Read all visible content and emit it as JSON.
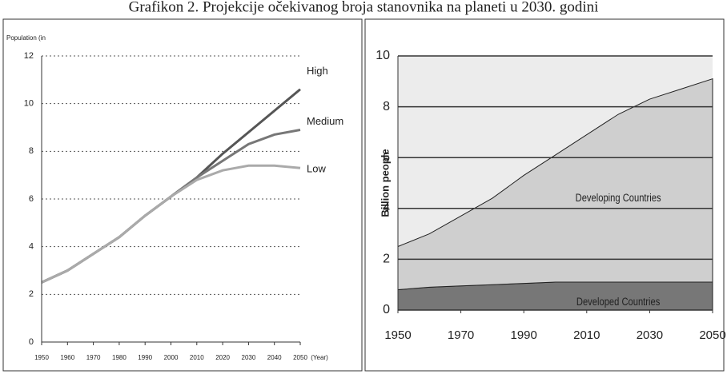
{
  "title": "Grafikon 2. Projekcije očekivanog broja stanovnika na planeti u 2030. godini",
  "chart_data": [
    {
      "type": "line",
      "ylabel": "Population (in",
      "xlabel": "(Year)",
      "x": [
        1950,
        1960,
        1970,
        1980,
        1990,
        2000,
        2010,
        2020,
        2030,
        2040,
        2050
      ],
      "xlim": [
        1950,
        2050
      ],
      "xticks": [
        1950,
        1960,
        1970,
        1980,
        1990,
        2000,
        2010,
        2020,
        2030,
        2040,
        2050
      ],
      "ylim": [
        0,
        12
      ],
      "yticks": [
        0,
        2,
        4,
        6,
        8,
        10,
        12
      ],
      "grid": true,
      "series": [
        {
          "name": "High",
          "color": "#555555",
          "values": [
            2.5,
            3.0,
            3.7,
            4.4,
            5.3,
            6.1,
            6.9,
            7.9,
            8.8,
            9.7,
            10.6
          ]
        },
        {
          "name": "Medium",
          "color": "#777777",
          "values": [
            2.5,
            3.0,
            3.7,
            4.4,
            5.3,
            6.1,
            6.9,
            7.6,
            8.3,
            8.7,
            8.9
          ]
        },
        {
          "name": "Low",
          "color": "#aaaaaa",
          "values": [
            2.5,
            3.0,
            3.7,
            4.4,
            5.3,
            6.1,
            6.8,
            7.2,
            7.4,
            7.4,
            7.3
          ]
        }
      ]
    },
    {
      "type": "stacked_area",
      "ylabel": "Billion people",
      "x": [
        1950,
        1960,
        1970,
        1980,
        1990,
        2000,
        2010,
        2020,
        2030,
        2040,
        2050
      ],
      "xlim": [
        1950,
        2050
      ],
      "xticks": [
        1950,
        1970,
        1990,
        2010,
        2030,
        2050
      ],
      "ylim": [
        0,
        10
      ],
      "yticks": [
        0,
        2,
        4,
        6,
        8,
        10
      ],
      "grid": true,
      "series": [
        {
          "name": "Developed Countries",
          "color": "#777777",
          "values": [
            0.8,
            0.9,
            0.95,
            1.0,
            1.05,
            1.1,
            1.1,
            1.1,
            1.1,
            1.1,
            1.1
          ]
        },
        {
          "name": "Developing Countries",
          "color": "#cfcfcf",
          "values": [
            1.7,
            2.1,
            2.75,
            3.4,
            4.25,
            5.0,
            5.8,
            6.6,
            7.2,
            7.6,
            8.0
          ]
        }
      ]
    }
  ]
}
